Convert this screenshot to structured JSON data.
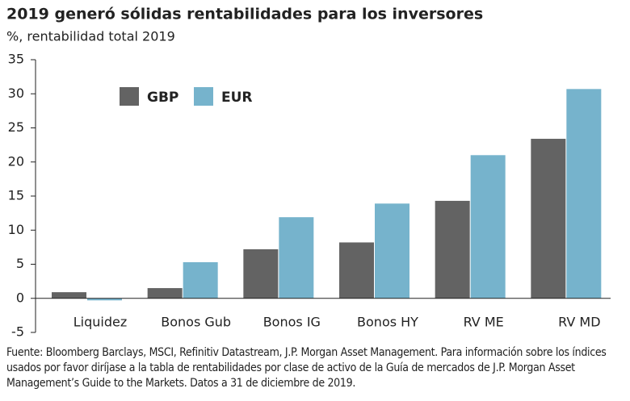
{
  "chart_data": {
    "type": "bar",
    "title": "2019 generó sólidas rentabilidades para los inversores",
    "subtitle": "%, rentabilidad total 2019",
    "categories": [
      "Liquidez",
      "Bonos Gub",
      "Bonos IG",
      "Bonos HY",
      "RV ME",
      "RV MD"
    ],
    "series": [
      {
        "name": "GBP",
        "color": "#636363",
        "values": [
          0.9,
          1.5,
          7.2,
          8.2,
          14.3,
          23.4
        ]
      },
      {
        "name": "EUR",
        "color": "#76b3cc",
        "values": [
          -0.3,
          5.3,
          11.9,
          13.9,
          21.0,
          30.7
        ]
      }
    ],
    "ylim": [
      -5,
      35
    ],
    "yticks": [
      -5,
      0,
      5,
      10,
      15,
      20,
      25,
      30,
      35
    ],
    "grid": false,
    "source": "Fuente: Bloomberg Barclays, MSCI, Refinitiv Datastream, J.P. Morgan Asset Management. Para información sobre los índices usados por favor diríjase a la tabla de rentabilidades por clase de activo de la Guía de mercados de J.P. Morgan Asset Management’s Guide to the Markets. Datos a 31 de diciembre de 2019."
  }
}
